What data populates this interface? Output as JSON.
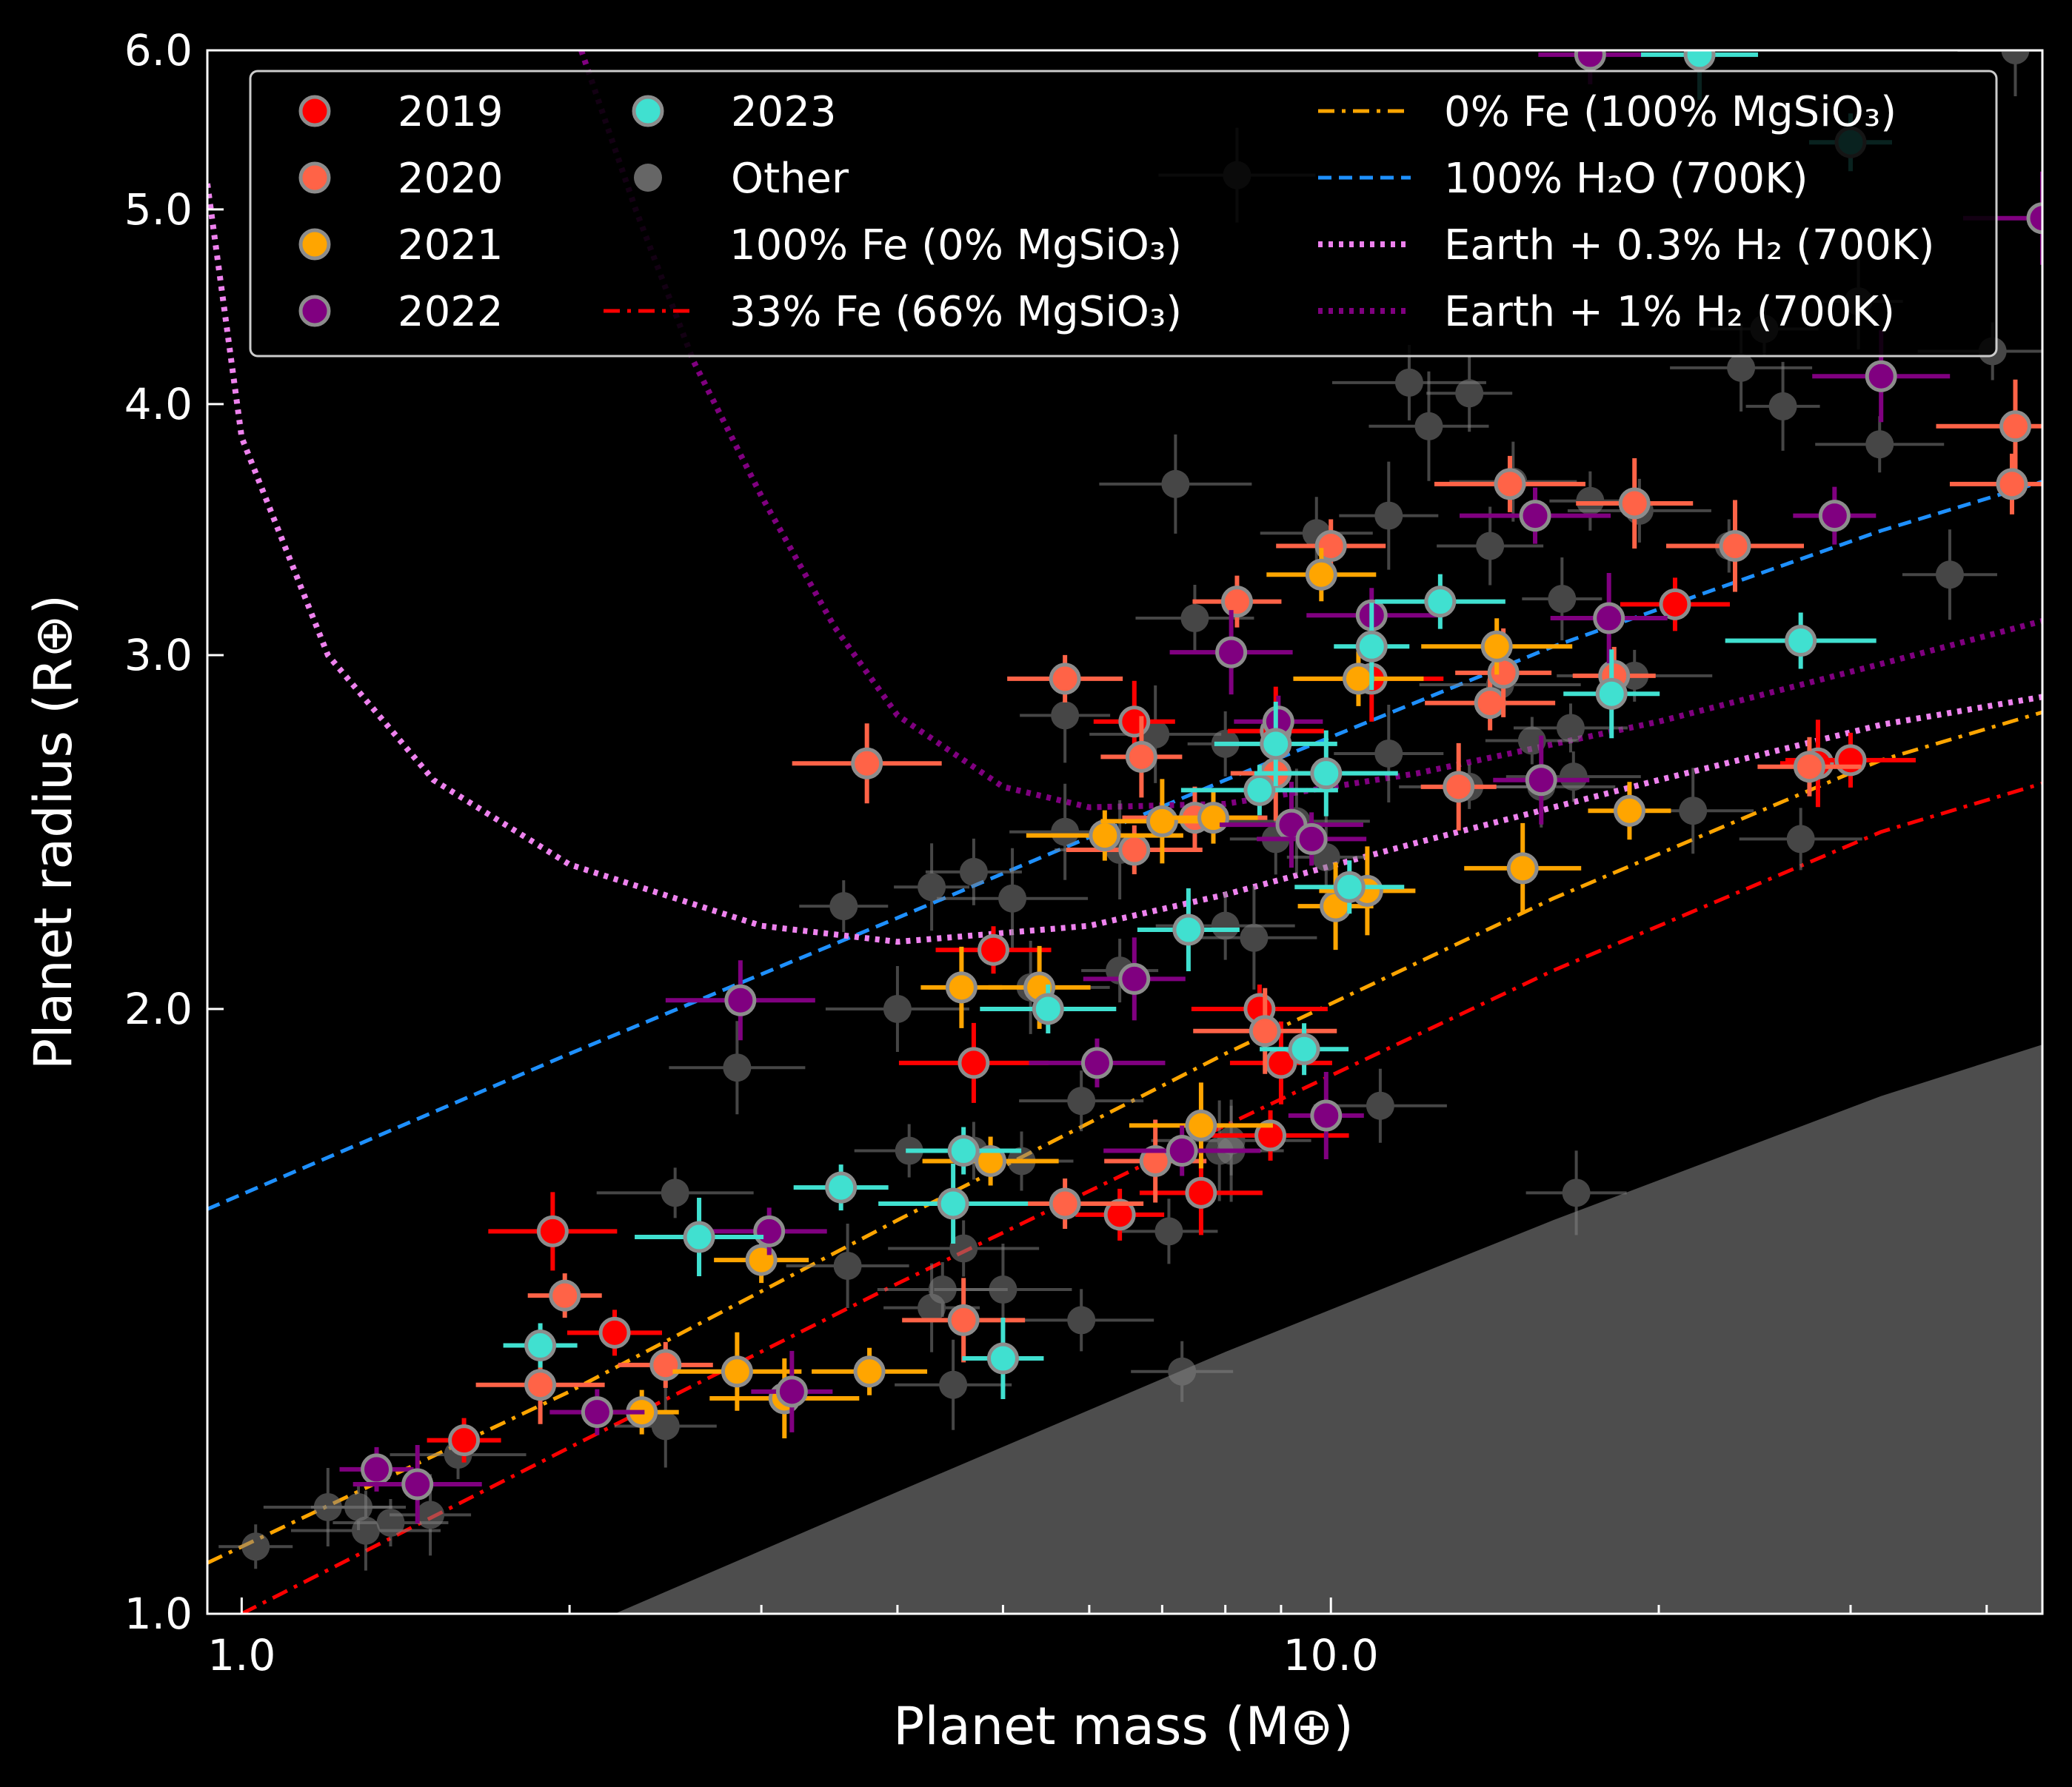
{
  "chart_data": {
    "type": "scatter",
    "xlabel": "Planet mass (M⊕)",
    "ylabel": "Planet radius (R⊕)",
    "xscale": "log",
    "yscale": "log",
    "xlim": [
      0.93,
      45
    ],
    "ylim": [
      1.0,
      6.0
    ],
    "xticks": [
      1.0,
      10.0
    ],
    "xtick_labels": [
      "1.0",
      "10.0"
    ],
    "yticks": [
      1.0,
      2.0,
      3.0,
      4.0,
      5.0,
      6.0
    ],
    "ytick_labels": [
      "1.0",
      "2.0",
      "3.0",
      "4.0",
      "5.0",
      "6.0"
    ],
    "grid": false,
    "legend_position": "top",
    "colors": {
      "background": "#000000",
      "axes": "#ffffff",
      "2019": "#ff0000",
      "2020": "#ff6347",
      "2021": "#ffa500",
      "2022": "#800080",
      "2023": "#40e0d0",
      "other": "#808080",
      "fe33": "#ff0000",
      "fe0": "#ffa500",
      "h2o": "#1e90ff",
      "h2_03": "#ee82ee",
      "h2_1": "#800080",
      "forbidden_region": "#4d4d4d"
    },
    "series": [
      {
        "name": "2019",
        "key": "2019",
        "points": [
          [
            1.6,
            1.22
          ],
          [
            1.93,
            1.55
          ],
          [
            2.2,
            1.38
          ],
          [
            4.7,
            1.88
          ],
          [
            4.9,
            2.14
          ],
          [
            6.6,
            2.78
          ],
          [
            8.6,
            2.0
          ],
          [
            9.0,
            1.88
          ],
          [
            8.8,
            1.73
          ],
          [
            7.6,
            1.62
          ],
          [
            6.4,
            1.58
          ],
          [
            10.9,
            2.92
          ],
          [
            20.7,
            3.18
          ],
          [
            28.0,
            2.65
          ],
          [
            30.0,
            2.66
          ],
          [
            8.9,
            2.75
          ]
        ]
      },
      {
        "name": "2020",
        "key": "2020",
        "points": [
          [
            1.98,
            1.44
          ],
          [
            1.88,
            1.3
          ],
          [
            2.45,
            1.33
          ],
          [
            3.75,
            2.65
          ],
          [
            5.7,
            2.92
          ],
          [
            6.7,
            2.67
          ],
          [
            6.6,
            2.4
          ],
          [
            6.9,
            1.68
          ],
          [
            5.7,
            1.6
          ],
          [
            4.6,
            1.4
          ],
          [
            8.2,
            3.19
          ],
          [
            8.7,
            1.95
          ],
          [
            10.0,
            3.4
          ],
          [
            13.1,
            2.58
          ],
          [
            14.0,
            2.84
          ],
          [
            14.4,
            2.94
          ],
          [
            14.6,
            3.65
          ],
          [
            19.0,
            3.57
          ],
          [
            18.2,
            2.93
          ],
          [
            23.5,
            3.4
          ],
          [
            27.5,
            2.64
          ],
          [
            42.5,
            3.9
          ],
          [
            42.2,
            3.65
          ],
          [
            8.9,
            2.62
          ],
          [
            7.5,
            2.49
          ]
        ]
      },
      {
        "name": "2021",
        "key": "2021",
        "points": [
          [
            2.33,
            1.26
          ],
          [
            2.85,
            1.32
          ],
          [
            3.0,
            1.5
          ],
          [
            3.15,
            1.28
          ],
          [
            3.77,
            1.32
          ],
          [
            4.58,
            2.05
          ],
          [
            4.87,
            1.68
          ],
          [
            5.4,
            2.05
          ],
          [
            6.2,
            2.44
          ],
          [
            7.0,
            2.48
          ],
          [
            7.8,
            2.49
          ],
          [
            7.6,
            1.75
          ],
          [
            9.8,
            3.29
          ],
          [
            10.1,
            2.25
          ],
          [
            10.6,
            2.92
          ],
          [
            10.8,
            2.29
          ],
          [
            14.2,
            3.03
          ],
          [
            15.0,
            2.35
          ],
          [
            18.8,
            2.51
          ]
        ]
      },
      {
        "name": "2022",
        "key": "2022",
        "points": [
          [
            1.33,
            1.18
          ],
          [
            1.45,
            1.16
          ],
          [
            2.12,
            1.26
          ],
          [
            2.87,
            2.02
          ],
          [
            3.05,
            1.55
          ],
          [
            3.2,
            1.29
          ],
          [
            6.1,
            1.88
          ],
          [
            6.6,
            2.07
          ],
          [
            7.3,
            1.7
          ],
          [
            8.1,
            3.01
          ],
          [
            8.95,
            2.78
          ],
          [
            9.2,
            2.47
          ],
          [
            9.6,
            2.43
          ],
          [
            9.9,
            1.77
          ],
          [
            10.9,
            3.14
          ],
          [
            15.6,
            2.6
          ],
          [
            15.4,
            3.52
          ],
          [
            18.0,
            3.13
          ],
          [
            29.0,
            3.52
          ],
          [
            32.0,
            4.13
          ],
          [
            17.3,
            5.97
          ],
          [
            45.0,
            4.95
          ]
        ]
      },
      {
        "name": "2023",
        "key": "2023",
        "points": [
          [
            1.88,
            1.36
          ],
          [
            2.63,
            1.54
          ],
          [
            3.55,
            1.63
          ],
          [
            4.5,
            1.6
          ],
          [
            4.6,
            1.7
          ],
          [
            5.0,
            1.34
          ],
          [
            5.5,
            2.0
          ],
          [
            7.4,
            2.19
          ],
          [
            8.6,
            2.57
          ],
          [
            8.9,
            2.71
          ],
          [
            9.45,
            1.91
          ],
          [
            9.9,
            2.62
          ],
          [
            10.4,
            2.3
          ],
          [
            10.9,
            3.03
          ],
          [
            12.6,
            3.19
          ],
          [
            18.1,
            2.87
          ],
          [
            27.0,
            3.05
          ],
          [
            21.8,
            5.97
          ],
          [
            30.0,
            5.4
          ]
        ]
      },
      {
        "name": "Other",
        "key": "other",
        "points": [
          [
            1.03,
            1.08
          ],
          [
            1.2,
            1.13
          ],
          [
            1.28,
            1.13
          ],
          [
            1.3,
            1.1
          ],
          [
            1.37,
            1.11
          ],
          [
            1.49,
            1.12
          ],
          [
            1.58,
            1.2
          ],
          [
            2.45,
            1.24
          ],
          [
            2.5,
            1.62
          ],
          [
            3.6,
            1.49
          ],
          [
            3.57,
            2.25
          ],
          [
            4.0,
            2.0
          ],
          [
            4.1,
            1.7
          ],
          [
            4.3,
            2.3
          ],
          [
            4.4,
            1.45
          ],
          [
            4.3,
            1.42
          ],
          [
            4.6,
            1.52
          ],
          [
            4.5,
            1.3
          ],
          [
            4.7,
            1.7
          ],
          [
            5.0,
            1.45
          ],
          [
            5.2,
            1.68
          ],
          [
            5.3,
            2.05
          ],
          [
            5.9,
            1.8
          ],
          [
            5.7,
            2.8
          ],
          [
            5.9,
            1.4
          ],
          [
            5.7,
            2.45
          ],
          [
            6.4,
            2.09
          ],
          [
            6.9,
            2.74
          ],
          [
            7.1,
            1.55
          ],
          [
            7.2,
            3.65
          ],
          [
            7.5,
            3.13
          ],
          [
            7.9,
            1.7
          ],
          [
            8.0,
            2.2
          ],
          [
            8.1,
            1.7
          ],
          [
            8.1,
            1.72
          ],
          [
            8.5,
            2.17
          ],
          [
            8.9,
            2.43
          ],
          [
            9.3,
            2.48
          ],
          [
            9.7,
            3.45
          ],
          [
            9.9,
            2.38
          ],
          [
            11.1,
            1.79
          ],
          [
            11.3,
            3.52
          ],
          [
            11.8,
            4.1
          ],
          [
            12.3,
            3.9
          ],
          [
            13.4,
            4.05
          ],
          [
            13.4,
            2.58
          ],
          [
            14.0,
            3.4
          ],
          [
            14.3,
            2.9
          ],
          [
            14.7,
            3.66
          ],
          [
            15.3,
            2.72
          ],
          [
            15.6,
            2.58
          ],
          [
            16.6,
            2.76
          ],
          [
            16.3,
            3.2
          ],
          [
            16.7,
            2.61
          ],
          [
            16.8,
            1.62
          ],
          [
            19.0,
            2.93
          ],
          [
            21.5,
            2.51
          ],
          [
            23.2,
            3.4
          ],
          [
            23.8,
            4.17
          ],
          [
            25.0,
            4.36
          ],
          [
            26.0,
            3.99
          ],
          [
            31.9,
            3.82
          ],
          [
            37.0,
            3.29
          ],
          [
            40.5,
            4.25
          ],
          [
            42.5,
            6.0
          ],
          [
            17.3,
            3.58
          ],
          [
            2.85,
            1.87
          ],
          [
            7.3,
            1.32
          ],
          [
            8.2,
            5.2
          ],
          [
            27.0,
            2.43
          ],
          [
            30.5,
            4.5
          ],
          [
            19.2,
            3.54
          ],
          [
            11.3,
            2.68
          ],
          [
            8.0,
            2.71
          ],
          [
            6.4,
            2.4
          ],
          [
            4.7,
            2.34
          ],
          [
            5.1,
            2.27
          ]
        ]
      }
    ],
    "curves": [
      {
        "name": "100% Fe (0% MgSiO₃)",
        "key": "fe100",
        "points": []
      },
      {
        "name": "33% Fe (66% MgSiO₃)",
        "key": "fe33",
        "style": "dashdot",
        "points": [
          [
            1.0,
            1.0
          ],
          [
            2.0,
            1.21
          ],
          [
            4.0,
            1.46
          ],
          [
            8.0,
            1.75
          ],
          [
            16.0,
            2.09
          ],
          [
            32.0,
            2.45
          ],
          [
            45.0,
            2.59
          ]
        ]
      },
      {
        "name": "0% Fe (100% MgSiO₃)",
        "key": "fe0",
        "style": "dashdot",
        "points": [
          [
            0.93,
            1.06
          ],
          [
            2.0,
            1.29
          ],
          [
            4.0,
            1.57
          ],
          [
            8.0,
            1.9
          ],
          [
            16.0,
            2.27
          ],
          [
            32.0,
            2.66
          ],
          [
            45.0,
            2.81
          ]
        ]
      },
      {
        "name": "100% H₂O (700K)",
        "key": "h2o",
        "style": "dashed",
        "points": [
          [
            0.93,
            1.59
          ],
          [
            2.0,
            1.9
          ],
          [
            4.0,
            2.22
          ],
          [
            8.0,
            2.6
          ],
          [
            16.0,
            3.03
          ],
          [
            32.0,
            3.46
          ],
          [
            45.0,
            3.66
          ]
        ]
      },
      {
        "name": "Earth + 0.3% H₂ (700K)",
        "key": "h2_03",
        "style": "dotted",
        "points": [
          [
            0.93,
            5.15
          ],
          [
            1.0,
            3.85
          ],
          [
            1.2,
            3.0
          ],
          [
            1.5,
            2.6
          ],
          [
            2.0,
            2.36
          ],
          [
            3.0,
            2.2
          ],
          [
            4.0,
            2.16
          ],
          [
            6.0,
            2.2
          ],
          [
            8.0,
            2.28
          ],
          [
            12.0,
            2.42
          ],
          [
            20.0,
            2.6
          ],
          [
            32.0,
            2.77
          ],
          [
            45.0,
            2.86
          ]
        ]
      },
      {
        "name": "Earth + 1% H₂ (700K)",
        "key": "h2_1",
        "style": "dotted",
        "points": [
          [
            2.05,
            6.0
          ],
          [
            2.3,
            5.0
          ],
          [
            2.6,
            4.2
          ],
          [
            3.0,
            3.6
          ],
          [
            3.5,
            3.1
          ],
          [
            4.0,
            2.8
          ],
          [
            5.0,
            2.58
          ],
          [
            6.0,
            2.52
          ],
          [
            8.0,
            2.53
          ],
          [
            12.0,
            2.62
          ],
          [
            20.0,
            2.78
          ],
          [
            32.0,
            2.97
          ],
          [
            45.0,
            3.12
          ]
        ]
      }
    ],
    "forbidden_region": [
      [
        2.2,
        1.0
      ],
      [
        4.0,
        1.15
      ],
      [
        8.0,
        1.35
      ],
      [
        16.0,
        1.57
      ],
      [
        32.0,
        1.81
      ],
      [
        45.0,
        1.92
      ]
    ]
  }
}
